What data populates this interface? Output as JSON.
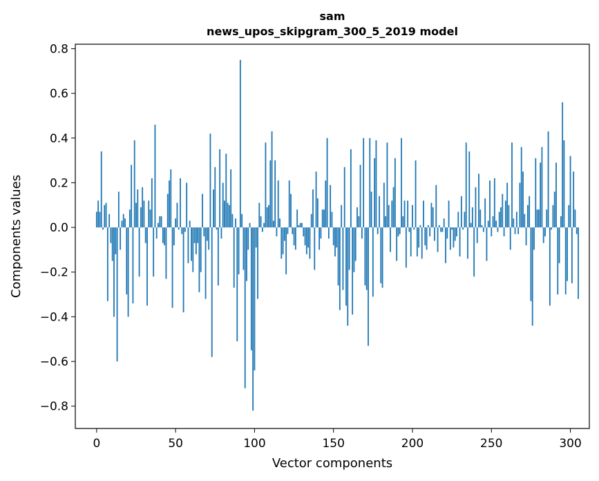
{
  "chart_data": {
    "type": "bar",
    "title_line1": "sam",
    "title_line2": "news_upos_skipgram_300_5_2019 model",
    "xlabel": "Vector components",
    "ylabel": "Components values",
    "xlim": [
      -13.5,
      312
    ],
    "ylim": [
      -0.9,
      0.82
    ],
    "xticks": [
      0,
      50,
      100,
      150,
      200,
      250,
      300
    ],
    "xtick_labels": [
      "0",
      "50",
      "100",
      "150",
      "200",
      "250",
      "300"
    ],
    "yticks": [
      0.8,
      0.6,
      0.4,
      0.2,
      0.0,
      -0.2,
      -0.4,
      -0.6,
      -0.8
    ],
    "ytick_labels": [
      "0.8",
      "0.6",
      "0.4",
      "0.2",
      "0.0",
      "−0.2",
      "−0.4",
      "−0.6",
      "−0.8"
    ],
    "bar_color": "#1f77b4",
    "values": [
      0.07,
      0.12,
      0.07,
      0.34,
      -0.01,
      0.1,
      0.11,
      -0.33,
      0.06,
      -0.07,
      -0.15,
      -0.4,
      -0.12,
      -0.6,
      0.16,
      -0.1,
      0.03,
      0.06,
      0.04,
      -0.3,
      -0.4,
      0.08,
      0.28,
      -0.34,
      0.39,
      0.11,
      0.17,
      -0.22,
      0.09,
      0.18,
      0.12,
      -0.07,
      -0.35,
      0.12,
      0.08,
      0.22,
      -0.22,
      0.46,
      -0.05,
      0.02,
      0.05,
      0.05,
      -0.07,
      -0.08,
      -0.23,
      0.15,
      0.21,
      0.26,
      -0.36,
      -0.08,
      0.04,
      0.11,
      -0.01,
      0.22,
      -0.03,
      -0.38,
      -0.02,
      0.2,
      -0.16,
      0.03,
      -0.15,
      -0.2,
      -0.07,
      -0.12,
      -0.07,
      -0.29,
      -0.2,
      0.15,
      -0.04,
      -0.32,
      -0.06,
      -0.1,
      0.42,
      -0.58,
      0.17,
      0.27,
      -0.01,
      -0.26,
      0.35,
      -0.05,
      0.2,
      0.12,
      0.33,
      0.11,
      0.1,
      0.26,
      0.06,
      -0.27,
      0.04,
      -0.51,
      -0.21,
      0.75,
      0.06,
      -0.19,
      -0.72,
      -0.24,
      -0.1,
      0.02,
      -0.55,
      -0.82,
      -0.64,
      -0.09,
      -0.32,
      0.11,
      0.05,
      -0.02,
      0.02,
      0.38,
      0.09,
      0.1,
      0.3,
      0.43,
      0.03,
      0.3,
      -0.04,
      0.21,
      0.04,
      -0.14,
      -0.12,
      -0.06,
      -0.21,
      -0.03,
      0.21,
      0.15,
      -0.03,
      -0.08,
      -0.1,
      0.08,
      0.01,
      0.02,
      0.02,
      -0.04,
      -0.08,
      -0.12,
      -0.09,
      -0.14,
      0.06,
      0.17,
      -0.19,
      0.25,
      0.13,
      -0.1,
      -0.05,
      0.08,
      0.08,
      0.21,
      0.4,
      -0.05,
      0.19,
      0.07,
      -0.08,
      -0.13,
      -0.09,
      -0.26,
      -0.37,
      0.1,
      -0.28,
      0.27,
      -0.35,
      -0.44,
      -0.19,
      0.35,
      -0.39,
      -0.2,
      -0.15,
      0.09,
      0.05,
      0.28,
      -0.05,
      0.4,
      -0.26,
      -0.28,
      -0.53,
      0.4,
      0.16,
      -0.31,
      0.31,
      0.39,
      -0.03,
      0.14,
      -0.25,
      -0.27,
      0.2,
      0.05,
      0.38,
      0.1,
      -0.11,
      0.12,
      0.18,
      0.31,
      -0.15,
      -0.04,
      -0.03,
      0.4,
      0.05,
      0.12,
      -0.18,
      0.12,
      -0.02,
      -0.13,
      0.1,
      -0.01,
      0.3,
      -0.13,
      -0.09,
      0.01,
      -0.14,
      0.12,
      -0.08,
      -0.1,
      0.01,
      -0.04,
      0.11,
      0.09,
      -0.06,
      0.19,
      -0.11,
      0.01,
      -0.02,
      -0.02,
      0.04,
      -0.16,
      -0.05,
      0.12,
      -0.1,
      -0.01,
      -0.09,
      -0.06,
      -0.04,
      0.07,
      -0.13,
      0.14,
      -0.01,
      0.07,
      0.38,
      -0.14,
      0.34,
      0.02,
      0.09,
      -0.22,
      0.18,
      -0.07,
      0.24,
      0.08,
      0.01,
      -0.02,
      0.13,
      -0.15,
      0.03,
      0.21,
      -0.04,
      0.05,
      0.22,
      0.03,
      -0.02,
      0.07,
      0.09,
      0.15,
      -0.04,
      0.12,
      0.2,
      0.1,
      -0.1,
      0.38,
      0.04,
      -0.03,
      0.07,
      -0.03,
      0.2,
      0.36,
      0.25,
      0.06,
      -0.08,
      0.1,
      0.14,
      -0.33,
      -0.44,
      -0.1,
      0.31,
      0.08,
      0.08,
      0.29,
      0.36,
      -0.07,
      -0.04,
      0.08,
      0.43,
      -0.35,
      -0.01,
      0.1,
      0.16,
      0.29,
      -0.3,
      -0.16,
      0.05,
      0.56,
      0.39,
      -0.3,
      -0.24,
      0.1,
      0.32,
      -0.25,
      0.25,
      0.08,
      -0.03,
      -0.32
    ]
  }
}
